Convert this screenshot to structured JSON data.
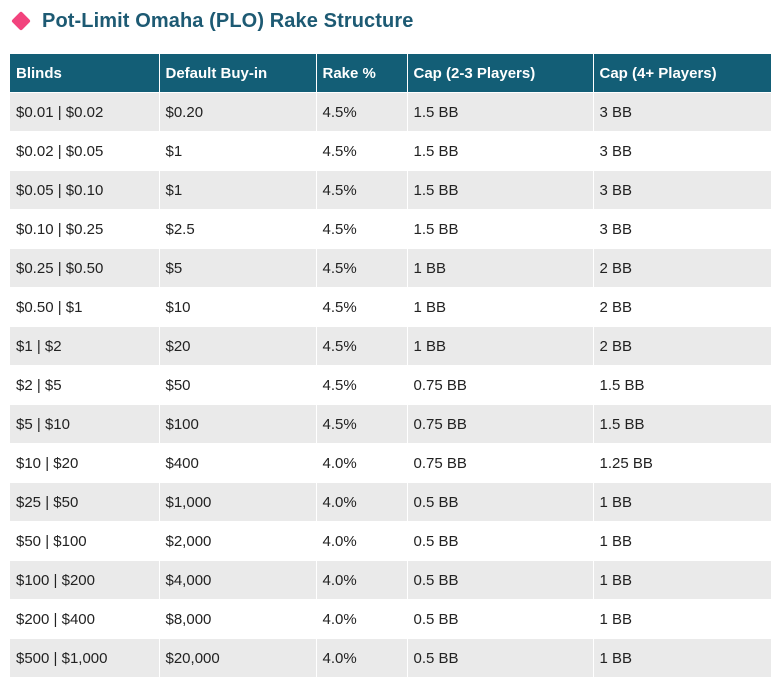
{
  "title": "Pot-Limit Omaha (PLO) Rake Structure",
  "colors": {
    "accent_diamond": "#f2437d",
    "title": "#1d5a73",
    "header_bg": "#135e76",
    "row_alt_bg": "#eaeaea"
  },
  "icon": "diamond-bullet-icon",
  "table": {
    "headers": [
      "Blinds",
      "Default Buy-in",
      "Rake %",
      "Cap (2-3 Players)",
      "Cap (4+ Players)"
    ],
    "rows": [
      [
        "$0.01 | $0.02",
        "$0.20",
        "4.5%",
        "1.5 BB",
        "3 BB"
      ],
      [
        "$0.02 | $0.05",
        "$1",
        "4.5%",
        "1.5 BB",
        "3 BB"
      ],
      [
        "$0.05 | $0.10",
        "$1",
        "4.5%",
        "1.5 BB",
        "3 BB"
      ],
      [
        "$0.10 | $0.25",
        "$2.5",
        "4.5%",
        "1.5 BB",
        "3 BB"
      ],
      [
        "$0.25 | $0.50",
        "$5",
        "4.5%",
        "1 BB",
        "2 BB"
      ],
      [
        "$0.50 | $1",
        "$10",
        "4.5%",
        "1 BB",
        "2 BB"
      ],
      [
        "$1 | $2",
        "$20",
        "4.5%",
        "1 BB",
        "2 BB"
      ],
      [
        "$2 | $5",
        "$50",
        "4.5%",
        "0.75 BB",
        "1.5 BB"
      ],
      [
        "$5 | $10",
        "$100",
        "4.5%",
        "0.75 BB",
        "1.5 BB"
      ],
      [
        "$10 | $20",
        "$400",
        "4.0%",
        "0.75 BB",
        "1.25 BB"
      ],
      [
        "$25 | $50",
        "$1,000",
        "4.0%",
        "0.5 BB",
        "1 BB"
      ],
      [
        "$50 | $100",
        "$2,000",
        "4.0%",
        "0.5 BB",
        "1 BB"
      ],
      [
        "$100 | $200",
        "$4,000",
        "4.0%",
        "0.5 BB",
        "1 BB"
      ],
      [
        "$200 | $400",
        "$8,000",
        "4.0%",
        "0.5 BB",
        "1 BB"
      ],
      [
        "$500 | $1,000",
        "$20,000",
        "4.0%",
        "0.5 BB",
        "1 BB"
      ]
    ]
  }
}
